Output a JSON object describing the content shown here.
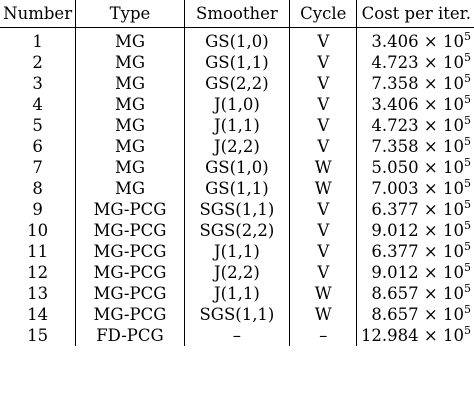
{
  "table": {
    "headers": [
      "Number",
      "Type",
      "Smoother",
      "Cycle",
      "Cost per iter."
    ],
    "rows": [
      {
        "number": "1",
        "type": "MG",
        "smoother": "GS(1,0)",
        "cycle": "V",
        "cost_mantissa": "3.406",
        "cost_times": "×",
        "cost_base": "10",
        "cost_exp": "5"
      },
      {
        "number": "2",
        "type": "MG",
        "smoother": "GS(1,1)",
        "cycle": "V",
        "cost_mantissa": "4.723",
        "cost_times": "×",
        "cost_base": "10",
        "cost_exp": "5"
      },
      {
        "number": "3",
        "type": "MG",
        "smoother": "GS(2,2)",
        "cycle": "V",
        "cost_mantissa": "7.358",
        "cost_times": "×",
        "cost_base": "10",
        "cost_exp": "5"
      },
      {
        "number": "4",
        "type": "MG",
        "smoother": "J(1,0)",
        "cycle": "V",
        "cost_mantissa": "3.406",
        "cost_times": "×",
        "cost_base": "10",
        "cost_exp": "5"
      },
      {
        "number": "5",
        "type": "MG",
        "smoother": "J(1,1)",
        "cycle": "V",
        "cost_mantissa": "4.723",
        "cost_times": "×",
        "cost_base": "10",
        "cost_exp": "5"
      },
      {
        "number": "6",
        "type": "MG",
        "smoother": "J(2,2)",
        "cycle": "V",
        "cost_mantissa": "7.358",
        "cost_times": "×",
        "cost_base": "10",
        "cost_exp": "5"
      },
      {
        "number": "7",
        "type": "MG",
        "smoother": "GS(1,0)",
        "cycle": "W",
        "cost_mantissa": "5.050",
        "cost_times": "×",
        "cost_base": "10",
        "cost_exp": "5"
      },
      {
        "number": "8",
        "type": "MG",
        "smoother": "GS(1,1)",
        "cycle": "W",
        "cost_mantissa": "7.003",
        "cost_times": "×",
        "cost_base": "10",
        "cost_exp": "5"
      },
      {
        "number": "9",
        "type": "MG-PCG",
        "smoother": "SGS(1,1)",
        "cycle": "V",
        "cost_mantissa": "6.377",
        "cost_times": "×",
        "cost_base": "10",
        "cost_exp": "5"
      },
      {
        "number": "10",
        "type": "MG-PCG",
        "smoother": "SGS(2,2)",
        "cycle": "V",
        "cost_mantissa": "9.012",
        "cost_times": "×",
        "cost_base": "10",
        "cost_exp": "5"
      },
      {
        "number": "11",
        "type": "MG-PCG",
        "smoother": "J(1,1)",
        "cycle": "V",
        "cost_mantissa": "6.377",
        "cost_times": "×",
        "cost_base": "10",
        "cost_exp": "5"
      },
      {
        "number": "12",
        "type": "MG-PCG",
        "smoother": "J(2,2)",
        "cycle": "V",
        "cost_mantissa": "9.012",
        "cost_times": "×",
        "cost_base": "10",
        "cost_exp": "5"
      },
      {
        "number": "13",
        "type": "MG-PCG",
        "smoother": "J(1,1)",
        "cycle": "W",
        "cost_mantissa": "8.657",
        "cost_times": "×",
        "cost_base": "10",
        "cost_exp": "5"
      },
      {
        "number": "14",
        "type": "MG-PCG",
        "smoother": "SGS(1,1)",
        "cycle": "W",
        "cost_mantissa": "8.657",
        "cost_times": "×",
        "cost_base": "10",
        "cost_exp": "5"
      },
      {
        "number": "15",
        "type": "FD-PCG",
        "smoother": "–",
        "cycle": "–",
        "cost_mantissa": "12.984",
        "cost_times": "×",
        "cost_base": "10",
        "cost_exp": "5"
      }
    ]
  }
}
